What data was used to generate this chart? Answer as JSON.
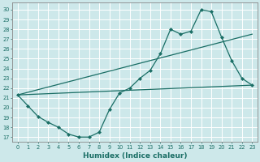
{
  "xlabel": "Humidex (Indice chaleur)",
  "bg_color": "#cde8ea",
  "line_color": "#1a6e65",
  "xlim": [
    -0.5,
    23.5
  ],
  "ylim": [
    16.5,
    30.7
  ],
  "yticks": [
    17,
    18,
    19,
    20,
    21,
    22,
    23,
    24,
    25,
    26,
    27,
    28,
    29,
    30
  ],
  "xticks": [
    0,
    1,
    2,
    3,
    4,
    5,
    6,
    7,
    8,
    9,
    10,
    11,
    12,
    13,
    14,
    15,
    16,
    17,
    18,
    19,
    20,
    21,
    22,
    23
  ],
  "jagged": {
    "x": [
      0,
      1,
      2,
      3,
      4,
      5,
      6,
      7,
      8,
      9,
      10,
      11,
      12,
      13,
      14,
      15,
      16,
      17,
      18,
      19,
      20,
      21,
      22,
      23
    ],
    "y": [
      21.3,
      20.2,
      19.1,
      18.5,
      18.0,
      17.3,
      17.0,
      17.0,
      17.5,
      19.8,
      21.5,
      22.0,
      23.0,
      23.8,
      25.5,
      28.0,
      27.5,
      27.8,
      30.0,
      29.8,
      27.2,
      24.8,
      23.0,
      22.3
    ]
  },
  "straight1": {
    "x": [
      0,
      23
    ],
    "y": [
      21.3,
      22.3
    ]
  },
  "straight2": {
    "x": [
      0,
      23
    ],
    "y": [
      21.3,
      27.5
    ]
  }
}
